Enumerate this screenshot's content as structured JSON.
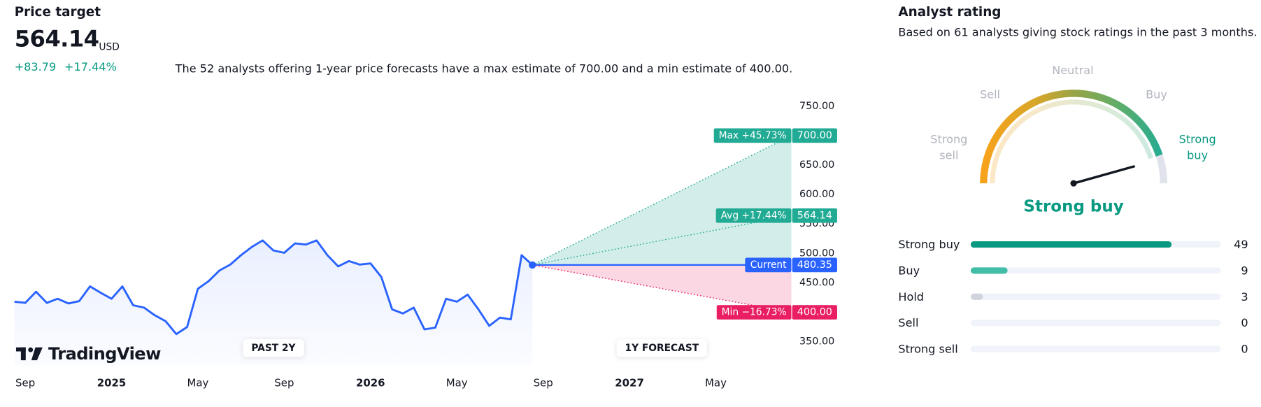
{
  "header": {
    "title": "Price target",
    "price": "564.14",
    "currency": "USD",
    "change": "+83.79",
    "change_percent": "+17.44%",
    "description": "The 52 analysts offering 1-year price forecasts have a max estimate of 700.00 and a min estimate of 400.00."
  },
  "analyst_rating": {
    "title": "Analyst rating",
    "subtitle": "Based on 61 analysts giving stock ratings in the past 3 months.",
    "gauge_labels": [
      "Strong sell",
      "Sell",
      "Neutral",
      "Buy",
      "Strong buy"
    ],
    "result": "Strong buy"
  },
  "chart_data": [
    {
      "type": "line",
      "categories": [
        null,
        "Sep",
        null,
        null,
        null,
        null,
        null,
        null,
        null,
        "2025",
        null,
        null,
        null,
        null,
        null,
        null,
        null,
        "May",
        null,
        null,
        null,
        null,
        null,
        null,
        null,
        "Sep",
        null,
        null,
        null,
        null,
        null,
        null,
        null,
        "2026",
        null,
        null,
        null,
        null,
        null,
        null,
        null,
        "May",
        null,
        null,
        null,
        null,
        null,
        null,
        null,
        "Sep",
        null,
        null,
        null,
        null,
        null,
        null,
        null,
        "2027",
        null,
        null,
        null,
        null,
        null,
        null,
        null,
        "May",
        null,
        null,
        null,
        null,
        null,
        null,
        null
      ],
      "series": [
        {
          "color": "#2962ff",
          "values": [
            418,
            416,
            435,
            416,
            423,
            415,
            419,
            444,
            433,
            423,
            444,
            412,
            408,
            395,
            385,
            363,
            375,
            440,
            453,
            471,
            481,
            497,
            511,
            522,
            505,
            501,
            517,
            515,
            522,
            497,
            478,
            487,
            481,
            483,
            460,
            405,
            398,
            408,
            371,
            374,
            423,
            418,
            430,
            405,
            377,
            391,
            388,
            497,
            480.35,
            null,
            null,
            null,
            null,
            null,
            null,
            null,
            null,
            null,
            null,
            null,
            null,
            null,
            null,
            null,
            null,
            null,
            null,
            null,
            null,
            null,
            null,
            null,
            null
          ]
        }
      ],
      "forecast": [
        {
          "label": "Max +45.73%",
          "value": 700,
          "value_label": "700.00",
          "color": "#22ab94",
          "line_style": "dotted"
        },
        {
          "label": "Avg +17.44%",
          "value": 564.14,
          "color": "#22ab94",
          "line_style": "dotted"
        },
        {
          "label": "Current",
          "value": 480.35,
          "color": "#2962ff",
          "line_style": "solid"
        },
        {
          "label": "Min −16.73%",
          "value": 400,
          "value_label": "400.00",
          "color": "#e91e63",
          "line_style": "dotted"
        }
      ],
      "ylim": [
        310,
        775
      ],
      "yticks": [
        {
          "value": 350,
          "label": "350.00"
        },
        {
          "value": 400,
          "label": "400.00"
        },
        {
          "value": 450,
          "label": "450.00"
        },
        {
          "value": 500,
          "label": "500.00"
        },
        {
          "value": 550,
          "label": "550.00"
        },
        {
          "value": 600,
          "label": "600.00"
        },
        {
          "value": 650,
          "label": "650.00"
        },
        {
          "value": 700,
          "label": "700.00"
        },
        {
          "value": 750,
          "label": "750.00"
        }
      ],
      "annotations": [
        "PAST 2Y",
        "1Y FORECAST"
      ],
      "logo": "TradingView"
    },
    {
      "type": "bar",
      "orientation": "horizontal",
      "categories": [
        "Strong buy",
        "Buy",
        "Hold",
        "Sell",
        "Strong sell"
      ],
      "values": [
        49,
        9,
        3,
        0,
        0
      ],
      "colors": [
        "#089981",
        "#42bda8",
        "#d1d4dc",
        "#f7525f",
        "#f23645"
      ],
      "xlim": [
        0,
        61
      ]
    }
  ]
}
